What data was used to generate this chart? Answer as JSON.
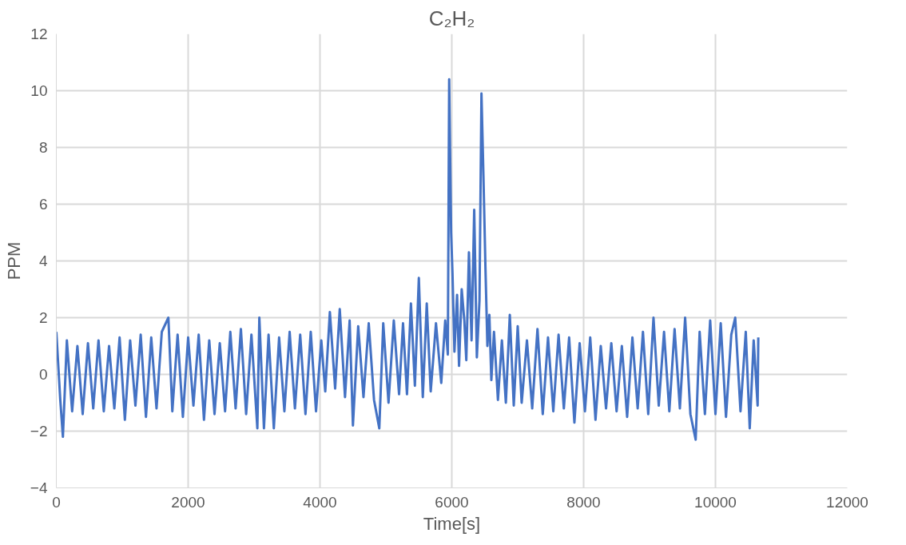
{
  "chart_data": {
    "type": "line",
    "title": "C₂H₂",
    "xlabel": "Time[s]",
    "ylabel": "PPM",
    "xlim": [
      0,
      12000
    ],
    "ylim": [
      -4,
      12
    ],
    "xticks": [
      0,
      2000,
      4000,
      6000,
      8000,
      10000,
      12000
    ],
    "yticks": [
      -4,
      -2,
      0,
      2,
      4,
      6,
      8,
      10,
      12
    ],
    "grid": true,
    "marker": "none",
    "line_style": "solid",
    "series": [
      {
        "color": "#4472c4",
        "x": [
          0,
          60,
          100,
          160,
          240,
          320,
          400,
          480,
          560,
          640,
          720,
          800,
          880,
          960,
          1040,
          1120,
          1200,
          1280,
          1360,
          1440,
          1520,
          1600,
          1700,
          1760,
          1840,
          1920,
          2000,
          2080,
          2160,
          2240,
          2320,
          2400,
          2480,
          2560,
          2640,
          2720,
          2800,
          2880,
          2960,
          3050,
          3080,
          3150,
          3220,
          3300,
          3380,
          3460,
          3540,
          3620,
          3700,
          3780,
          3860,
          3940,
          4020,
          4080,
          4150,
          4230,
          4300,
          4380,
          4450,
          4500,
          4580,
          4660,
          4740,
          4820,
          4900,
          4960,
          5040,
          5120,
          5200,
          5260,
          5320,
          5380,
          5440,
          5500,
          5560,
          5620,
          5680,
          5760,
          5840,
          5900,
          5940,
          5960,
          5990,
          6010,
          6040,
          6080,
          6110,
          6150,
          6190,
          6220,
          6260,
          6300,
          6340,
          6380,
          6420,
          6450,
          6480,
          6510,
          6540,
          6570,
          6600,
          6640,
          6700,
          6760,
          6820,
          6880,
          6940,
          7000,
          7060,
          7140,
          7220,
          7300,
          7380,
          7460,
          7540,
          7620,
          7700,
          7780,
          7860,
          7940,
          8020,
          8100,
          8180,
          8260,
          8340,
          8420,
          8500,
          8580,
          8660,
          8740,
          8820,
          8900,
          8980,
          9060,
          9140,
          9220,
          9300,
          9380,
          9460,
          9540,
          9620,
          9700,
          9760,
          9840,
          9920,
          10000,
          10080,
          10160,
          10240,
          10300,
          10380,
          10460,
          10520,
          10580,
          10640,
          10650
        ],
        "values": [
          1.5,
          -0.9,
          -2.2,
          1.2,
          -1.3,
          1.0,
          -1.4,
          1.1,
          -1.2,
          1.2,
          -1.3,
          1.0,
          -1.2,
          1.3,
          -1.6,
          1.2,
          -1.1,
          1.4,
          -1.5,
          1.3,
          -1.2,
          1.5,
          2.0,
          -1.3,
          1.4,
          -1.5,
          1.3,
          -1.1,
          1.4,
          -1.6,
          1.2,
          -1.4,
          1.1,
          -1.3,
          1.5,
          -1.2,
          1.6,
          -1.4,
          1.4,
          -1.9,
          2.0,
          -1.9,
          1.4,
          -1.9,
          1.3,
          -1.3,
          1.5,
          -1.2,
          1.4,
          -1.4,
          1.5,
          -1.3,
          1.2,
          -0.6,
          2.2,
          -0.5,
          2.3,
          -0.8,
          1.9,
          -1.8,
          1.7,
          -0.8,
          1.8,
          -0.9,
          -1.9,
          1.8,
          -1.0,
          1.9,
          -0.7,
          1.8,
          -0.7,
          2.5,
          -0.4,
          3.4,
          -0.8,
          2.5,
          -0.6,
          1.8,
          -0.3,
          1.9,
          0.7,
          10.4,
          5.0,
          3.6,
          0.8,
          2.8,
          0.3,
          3.0,
          1.9,
          0.5,
          4.3,
          1.2,
          5.8,
          0.6,
          2.6,
          9.9,
          7.0,
          3.8,
          1.0,
          2.1,
          -0.2,
          1.5,
          -0.9,
          1.2,
          -1.0,
          2.1,
          -1.1,
          1.7,
          -1.0,
          1.2,
          -1.2,
          1.6,
          -1.4,
          1.3,
          -1.3,
          1.4,
          -1.2,
          1.3,
          -1.7,
          1.1,
          -1.3,
          1.3,
          -1.6,
          1.0,
          -1.2,
          1.1,
          -1.3,
          1.0,
          -1.5,
          1.3,
          -1.2,
          1.5,
          -1.4,
          2.0,
          -1.1,
          1.5,
          -1.3,
          1.6,
          -1.2,
          2.0,
          -1.4,
          -2.3,
          1.5,
          -1.4,
          1.9,
          -1.4,
          1.8,
          -1.5,
          1.4,
          2.0,
          -1.3,
          1.5,
          -1.9,
          1.2,
          -1.1,
          1.3
        ]
      }
    ]
  }
}
